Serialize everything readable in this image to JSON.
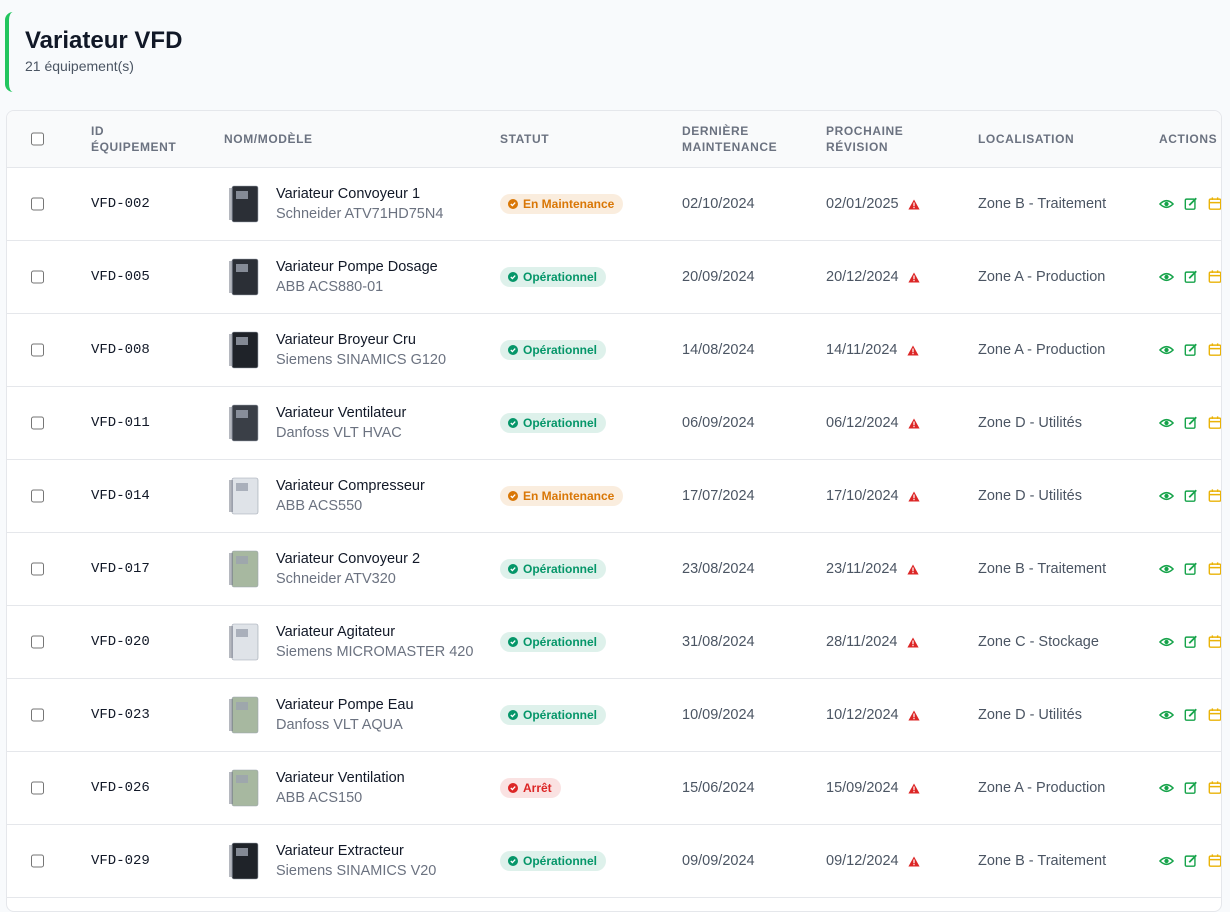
{
  "header": {
    "title": "Variateur VFD",
    "subtitle": "21 équipement(s)"
  },
  "table": {
    "columns": [
      "ID ÉQUIPEMENT",
      "NOM/MODÈLE",
      "STATUT",
      "DERNIÈRE MAINTENANCE",
      "PROCHAINE RÉVISION",
      "LOCALISATION",
      "ACTIONS"
    ],
    "rows": [
      {
        "id": "VFD-002",
        "name": "Variateur Convoyeur 1",
        "model": "Schneider ATV71HD75N4",
        "status": "En Maintenance",
        "status_color": "#d97706",
        "thumb_color": "#2b2f36",
        "last": "02/10/2024",
        "next": "02/01/2025",
        "location": "Zone B - Traitement"
      },
      {
        "id": "VFD-005",
        "name": "Variateur Pompe Dosage",
        "model": "ABB ACS880-01",
        "status": "Opérationnel",
        "status_color": "#059669",
        "thumb_color": "#2b2f36",
        "last": "20/09/2024",
        "next": "20/12/2024",
        "location": "Zone A - Production"
      },
      {
        "id": "VFD-008",
        "name": "Variateur Broyeur Cru",
        "model": "Siemens SINAMICS G120",
        "status": "Opérationnel",
        "status_color": "#059669",
        "thumb_color": "#1f2329",
        "last": "14/08/2024",
        "next": "14/11/2024",
        "location": "Zone A - Production"
      },
      {
        "id": "VFD-011",
        "name": "Variateur Ventilateur",
        "model": "Danfoss VLT HVAC",
        "status": "Opérationnel",
        "status_color": "#059669",
        "thumb_color": "#3a3f47",
        "last": "06/09/2024",
        "next": "06/12/2024",
        "location": "Zone D - Utilités"
      },
      {
        "id": "VFD-014",
        "name": "Variateur Compresseur",
        "model": "ABB ACS550",
        "status": "En Maintenance",
        "status_color": "#d97706",
        "thumb_color": "#dfe3e8",
        "last": "17/07/2024",
        "next": "17/10/2024",
        "location": "Zone D - Utilités"
      },
      {
        "id": "VFD-017",
        "name": "Variateur Convoyeur 2",
        "model": "Schneider ATV320",
        "status": "Opérationnel",
        "status_color": "#059669",
        "thumb_color": "#a7b8a0",
        "last": "23/08/2024",
        "next": "23/11/2024",
        "location": "Zone B - Traitement"
      },
      {
        "id": "VFD-020",
        "name": "Variateur Agitateur",
        "model": "Siemens MICROMASTER 420",
        "status": "Opérationnel",
        "status_color": "#059669",
        "thumb_color": "#dfe3e8",
        "last": "31/08/2024",
        "next": "28/11/2024",
        "location": "Zone C - Stockage"
      },
      {
        "id": "VFD-023",
        "name": "Variateur Pompe Eau",
        "model": "Danfoss VLT AQUA",
        "status": "Opérationnel",
        "status_color": "#059669",
        "thumb_color": "#a7b8a0",
        "last": "10/09/2024",
        "next": "10/12/2024",
        "location": "Zone D - Utilités"
      },
      {
        "id": "VFD-026",
        "name": "Variateur Ventilation",
        "model": "ABB ACS150",
        "status": "Arrêt",
        "status_color": "#dc2626",
        "thumb_color": "#a7b8a0",
        "last": "15/06/2024",
        "next": "15/09/2024",
        "location": "Zone A - Production"
      },
      {
        "id": "VFD-029",
        "name": "Variateur Extracteur",
        "model": "Siemens SINAMICS V20",
        "status": "Opérationnel",
        "status_color": "#059669",
        "thumb_color": "#1f2329",
        "last": "09/09/2024",
        "next": "09/12/2024",
        "location": "Zone B - Traitement"
      }
    ]
  }
}
